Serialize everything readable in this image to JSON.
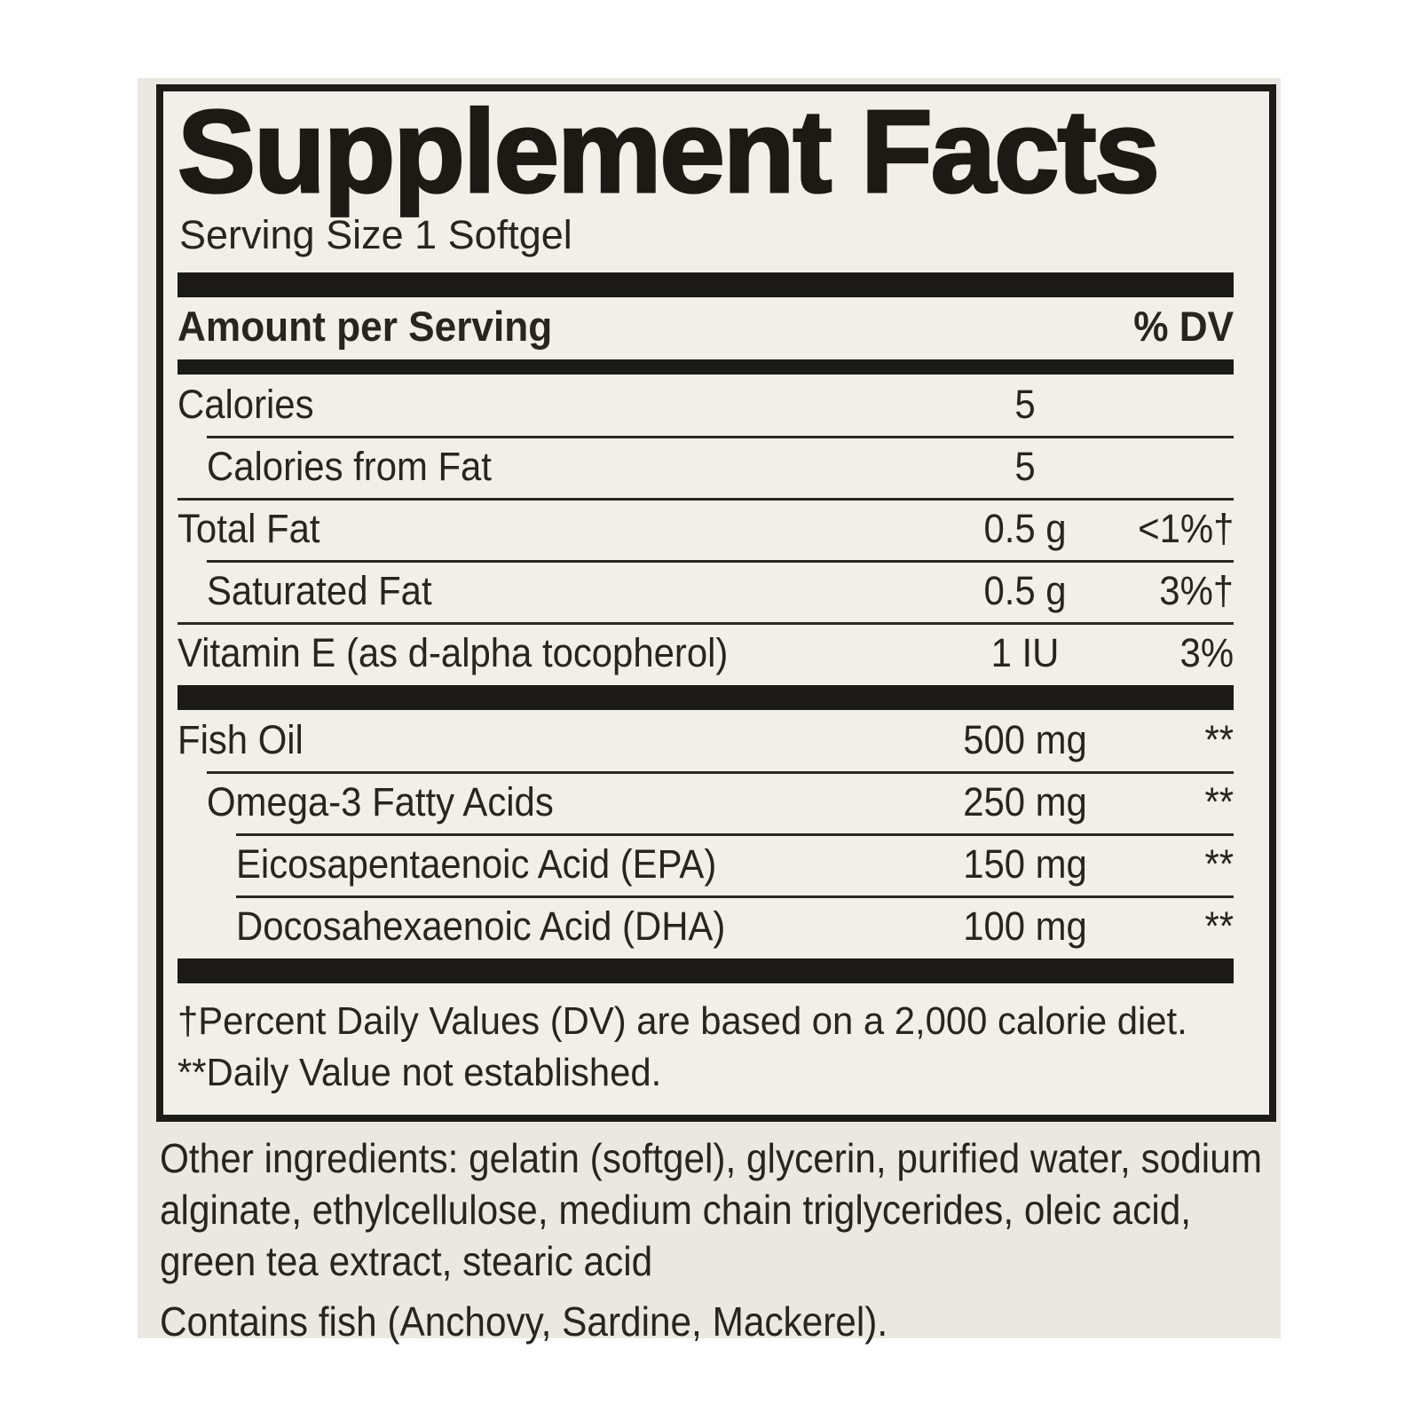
{
  "colors": {
    "page_bg": "#ffffff",
    "photo_bg": "#ebe8e2",
    "panel_bg": "#f2efe9",
    "ink": "#1c1a16",
    "text": "#28251f"
  },
  "panel": {
    "title": "Supplement Facts",
    "serving_size": "Serving Size 1 Softgel",
    "columns": {
      "amount": "Amount per Serving",
      "dv": "% DV"
    },
    "rows": [
      {
        "label": "Calories",
        "amount": "5",
        "dv": ""
      },
      {
        "label": "Calories from Fat",
        "amount": "5",
        "dv": ""
      },
      {
        "label": "Total Fat",
        "amount": "0.5 g",
        "dv": "<1%†"
      },
      {
        "label": "Saturated Fat",
        "amount": "0.5 g",
        "dv": "3%†"
      },
      {
        "label": "Vitamin E (as d-alpha tocopherol)",
        "amount": "1 IU",
        "dv": "3%"
      },
      {
        "label": "Fish Oil",
        "amount": "500 mg",
        "dv": "**"
      },
      {
        "label": "Omega-3 Fatty Acids",
        "amount": "250 mg",
        "dv": "**"
      },
      {
        "label": "Eicosapentaenoic Acid (EPA)",
        "amount": "150 mg",
        "dv": "**"
      },
      {
        "label": "Docosahexaenoic Acid (DHA)",
        "amount": "100 mg",
        "dv": "**"
      }
    ],
    "footnotes": [
      "†Percent Daily Values (DV) are based on a 2,000 calorie diet.",
      "**Daily Value not established."
    ]
  },
  "below_panel": {
    "other_ingredients": "Other ingredients: gelatin (softgel), glycerin, purified water, sodium alginate, ethylcellulose, medium chain triglycerides, oleic acid, green tea extract, stearic acid",
    "contains_statement": "Contains fish (Anchovy, Sardine, Mackerel)."
  }
}
